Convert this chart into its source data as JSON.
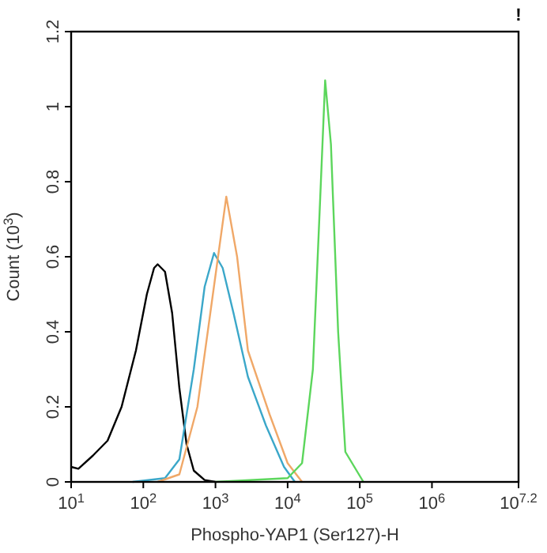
{
  "chart_data": {
    "type": "line",
    "xlabel": "Phospho-YAP1 (Ser127)-H",
    "ylabel": "Count (10$^{3}$)",
    "log": "x",
    "grid": false,
    "marker": "none",
    "line_style": "solid",
    "xlim": [
      10,
      15848932
    ],
    "ylim": [
      0,
      1.2
    ],
    "xticks": [
      {
        "value": 10,
        "label": "10$^{1}$"
      },
      {
        "value": 100,
        "label": "10$^{2}$"
      },
      {
        "value": 1000,
        "label": "10$^{3}$"
      },
      {
        "value": 10000,
        "label": "10$^{4}$"
      },
      {
        "value": 100000,
        "label": "10$^{5}$"
      },
      {
        "value": 1000000,
        "label": "10$^{6}$"
      },
      {
        "value": 15848932,
        "label": "10$^{7.2}$"
      }
    ],
    "yticks": [
      0,
      0.2,
      0.4,
      0.6,
      0.8,
      1,
      1.2
    ],
    "annotations": [
      "!"
    ],
    "series": [
      {
        "color": "#000000",
        "x": [
          10,
          12.6,
          20,
          32,
          50,
          79,
          112,
          141,
          158,
          200,
          251,
          316,
          398,
          501,
          708,
          1000
        ],
        "values": [
          0.04,
          0.035,
          0.07,
          0.11,
          0.2,
          0.35,
          0.5,
          0.57,
          0.58,
          0.56,
          0.45,
          0.25,
          0.1,
          0.03,
          0.005,
          0
        ]
      },
      {
        "color": "#3ba7c9",
        "x": [
          71,
          200,
          316,
          501,
          708,
          955,
          1259,
          1778,
          2818,
          5012,
          8913,
          12589
        ],
        "values": [
          0,
          0.01,
          0.06,
          0.3,
          0.52,
          0.61,
          0.57,
          0.45,
          0.28,
          0.15,
          0.04,
          0
        ]
      },
      {
        "color": "#f0a868",
        "x": [
          158,
          316,
          562,
          1000,
          1413,
          1995,
          2818,
          5623,
          10000,
          15849
        ],
        "values": [
          0,
          0.02,
          0.2,
          0.55,
          0.76,
          0.6,
          0.35,
          0.18,
          0.05,
          0
        ]
      },
      {
        "color": "#5cd65c",
        "x": [
          1000,
          10000,
          15849,
          22387,
          28184,
          33113,
          39811,
          50119,
          63096,
          112202
        ],
        "values": [
          0,
          0.01,
          0.05,
          0.3,
          0.75,
          1.07,
          0.9,
          0.4,
          0.08,
          0
        ]
      }
    ]
  }
}
